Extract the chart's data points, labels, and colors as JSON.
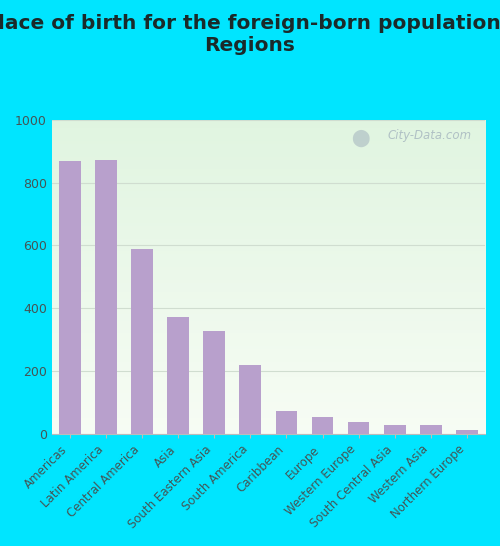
{
  "title": "Place of birth for the foreign-born population -\nRegions",
  "categories": [
    "Americas",
    "Latin America",
    "Central America",
    "Asia",
    "South Eastern Asia",
    "South America",
    "Caribbean",
    "Europe",
    "Western Europe",
    "South Central Asia",
    "Western Asia",
    "Northern Europe"
  ],
  "values": [
    868,
    872,
    590,
    372,
    328,
    218,
    72,
    54,
    38,
    30,
    28,
    14
  ],
  "bar_color": "#b8a0cc",
  "bg_outer": "#00e5ff",
  "ylim": [
    0,
    1000
  ],
  "yticks": [
    0,
    200,
    400,
    600,
    800,
    1000
  ],
  "title_fontsize": 14.5,
  "title_color": "#1a2a2a",
  "tick_label_fontsize": 8.5,
  "ytick_fontsize": 9,
  "watermark": "City-Data.com",
  "watermark_color": "#a8b8c0",
  "grid_color": "#d0ddd0"
}
